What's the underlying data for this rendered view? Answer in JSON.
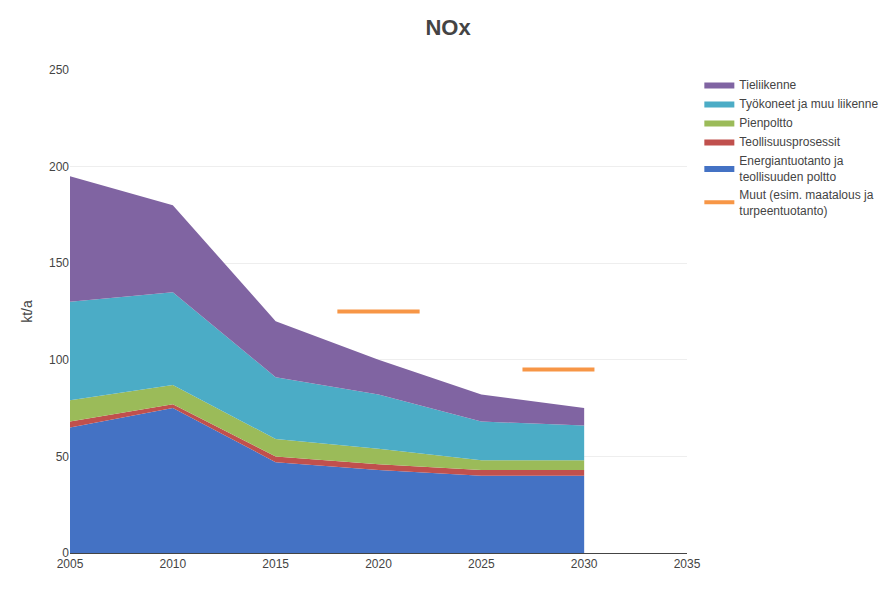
{
  "chart_data": {
    "type": "area",
    "title": "NOx",
    "ylabel": "kt/a",
    "stacked": true,
    "x": [
      2005,
      2010,
      2015,
      2020,
      2025,
      2030
    ],
    "xlim": [
      2005,
      2035
    ],
    "xticks": [
      2005,
      2010,
      2015,
      2020,
      2025,
      2030,
      2035
    ],
    "ylim": [
      0,
      250
    ],
    "yticks": [
      0,
      50,
      100,
      150,
      200,
      250
    ],
    "grid": true,
    "legend": "right",
    "series": [
      {
        "name": "Energiantuotanto ja\nteollisuuden poltto",
        "type": "area",
        "color": "#4472C4",
        "values": [
          65,
          75,
          47,
          43,
          40,
          40
        ]
      },
      {
        "name": "Teollisuusprosessit",
        "type": "area",
        "color": "#C0504D",
        "values": [
          3,
          2,
          3,
          3,
          3,
          3
        ]
      },
      {
        "name": "Pienpoltto",
        "type": "area",
        "color": "#9BBB59",
        "values": [
          11,
          10,
          9,
          8,
          5,
          5
        ]
      },
      {
        "name": "Työkoneet ja muu liikenne",
        "type": "area",
        "color": "#4BACC6",
        "values": [
          51,
          48,
          32,
          28,
          20,
          18
        ]
      },
      {
        "name": "Tieliikenne",
        "type": "area",
        "color": "#8064A2",
        "values": [
          65,
          45,
          29,
          18,
          14,
          9
        ]
      },
      {
        "name": "Muut (esim. maatalous ja\nturpeentuotanto)",
        "type": "line",
        "color": "#F79646",
        "x": [
          2018.0,
          2022.0,
          null,
          2027.0,
          2030.5
        ],
        "values": [
          125,
          125,
          null,
          95,
          95
        ]
      }
    ]
  }
}
